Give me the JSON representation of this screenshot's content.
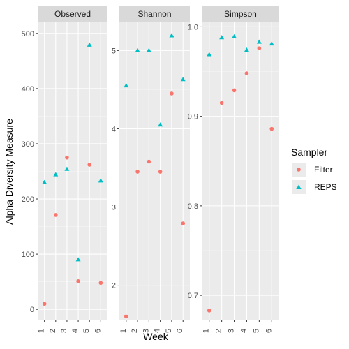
{
  "chart_data": {
    "type": "scatter",
    "xlabel": "Week",
    "ylabel": "Alpha Diversity Measure",
    "x_categories": [
      "1",
      "2",
      "3",
      "4",
      "5",
      "6"
    ],
    "legend": {
      "title": "Sampler",
      "position": "right",
      "entries": [
        {
          "name": "Filter",
          "shape": "circle",
          "color": "#F8766D"
        },
        {
          "name": "REPS",
          "shape": "triangle",
          "color": "#00BFC4"
        }
      ]
    },
    "grid": true,
    "panels": [
      {
        "title": "Observed",
        "ylim": [
          -20,
          520
        ],
        "yticks": [
          0,
          100,
          200,
          300,
          400,
          500
        ],
        "ytick_labels": [
          "0",
          "100",
          "200",
          "300",
          "400",
          "500"
        ],
        "series": [
          {
            "name": "Filter",
            "x": [
              1,
              2,
              3,
              4,
              5,
              6
            ],
            "y": [
              10,
              171,
              275,
              51,
              262,
              48
            ]
          },
          {
            "name": "REPS",
            "x": [
              1,
              2,
              3,
              4,
              5,
              6
            ],
            "y": [
              230,
              244,
              254,
              90,
              479,
              233
            ]
          }
        ]
      },
      {
        "title": "Shannon",
        "ylim": [
          1.55,
          5.36
        ],
        "yticks": [
          2,
          3,
          4,
          5
        ],
        "ytick_labels": [
          "2",
          "3",
          "4",
          "5"
        ],
        "series": [
          {
            "name": "Filter",
            "x": [
              1,
              2,
              3,
              4,
              5,
              6
            ],
            "y": [
              1.6,
              3.45,
              3.58,
              3.45,
              4.45,
              2.79
            ]
          },
          {
            "name": "REPS",
            "x": [
              1,
              2,
              3,
              4,
              5,
              6
            ],
            "y": [
              4.55,
              5.0,
              5.0,
              4.05,
              5.19,
              4.63
            ]
          }
        ]
      },
      {
        "title": "Simpson",
        "ylim": [
          0.672,
          1.005
        ],
        "yticks": [
          0.7,
          0.8,
          0.9,
          1.0
        ],
        "ytick_labels": [
          "0.7",
          "0.8",
          "0.9",
          "1.0"
        ],
        "series": [
          {
            "name": "Filter",
            "x": [
              1,
              2,
              3,
              4,
              5,
              6
            ],
            "y": [
              0.683,
              0.915,
              0.929,
              0.948,
              0.976,
              0.886
            ]
          },
          {
            "name": "REPS",
            "x": [
              1,
              2,
              3,
              4,
              5,
              6
            ],
            "y": [
              0.969,
              0.988,
              0.989,
              0.974,
              0.983,
              0.981
            ]
          }
        ]
      }
    ]
  }
}
